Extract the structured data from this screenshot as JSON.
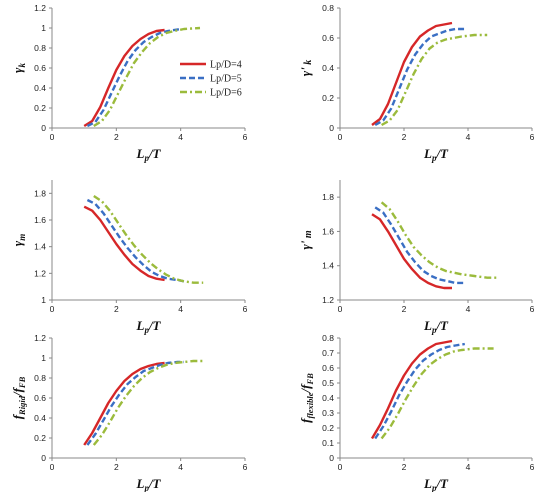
{
  "colors": {
    "red": "#d62728",
    "blue": "#3a6fc4",
    "green": "#9bbb3c",
    "axis": "#888888"
  },
  "legend": [
    "Lp/D=4",
    "Lp/D=5",
    "Lp/D=6"
  ],
  "chart_data": [
    {
      "type": "line",
      "xlabel": "Lp/T",
      "ylabel": "γk",
      "xlim": [
        0,
        6
      ],
      "ylim": [
        0,
        1.2
      ],
      "xticks": [
        0,
        2,
        4,
        6
      ],
      "yticks": [
        0,
        0.2,
        0.4,
        0.6,
        0.8,
        1,
        1.2
      ],
      "legend": "inside-right",
      "series": [
        {
          "name": "Lp/D=4",
          "x": [
            1.0,
            1.25,
            1.5,
            1.75,
            2.0,
            2.25,
            2.5,
            2.75,
            3.0,
            3.25,
            3.5
          ],
          "y": [
            0.02,
            0.07,
            0.21,
            0.4,
            0.58,
            0.72,
            0.82,
            0.89,
            0.94,
            0.97,
            0.98
          ]
        },
        {
          "name": "Lp/D=5",
          "x": [
            1.1,
            1.35,
            1.6,
            1.85,
            2.1,
            2.35,
            2.6,
            2.85,
            3.1,
            3.35,
            3.6,
            4.0
          ],
          "y": [
            0.02,
            0.06,
            0.18,
            0.35,
            0.52,
            0.67,
            0.78,
            0.86,
            0.91,
            0.95,
            0.97,
            0.99
          ]
        },
        {
          "name": "Lp/D=6",
          "x": [
            1.3,
            1.55,
            1.8,
            2.05,
            2.3,
            2.55,
            2.8,
            3.05,
            3.3,
            3.55,
            3.8,
            4.1,
            4.6
          ],
          "y": [
            0.02,
            0.07,
            0.18,
            0.34,
            0.5,
            0.65,
            0.76,
            0.85,
            0.91,
            0.95,
            0.97,
            0.99,
            1.0
          ]
        }
      ]
    },
    {
      "type": "line",
      "xlabel": "Lp/T",
      "ylabel": "γ'k",
      "xlim": [
        0,
        6
      ],
      "ylim": [
        0,
        0.8
      ],
      "xticks": [
        0,
        2,
        4,
        6
      ],
      "yticks": [
        0,
        0.2,
        0.4,
        0.6,
        0.8
      ],
      "series": [
        {
          "name": "Lp/D=4",
          "x": [
            1.0,
            1.25,
            1.5,
            1.75,
            2.0,
            2.25,
            2.5,
            2.75,
            3.0,
            3.25,
            3.5
          ],
          "y": [
            0.02,
            0.06,
            0.16,
            0.3,
            0.44,
            0.54,
            0.61,
            0.65,
            0.68,
            0.69,
            0.7
          ]
        },
        {
          "name": "Lp/D=5",
          "x": [
            1.1,
            1.35,
            1.6,
            1.85,
            2.1,
            2.35,
            2.6,
            2.85,
            3.1,
            3.35,
            3.6,
            3.9
          ],
          "y": [
            0.02,
            0.05,
            0.13,
            0.26,
            0.39,
            0.49,
            0.56,
            0.61,
            0.63,
            0.65,
            0.66,
            0.66
          ]
        },
        {
          "name": "Lp/D=6",
          "x": [
            1.3,
            1.55,
            1.8,
            2.05,
            2.3,
            2.55,
            2.8,
            3.05,
            3.3,
            3.55,
            3.8,
            4.2,
            4.6
          ],
          "y": [
            0.02,
            0.05,
            0.12,
            0.24,
            0.36,
            0.46,
            0.53,
            0.57,
            0.59,
            0.6,
            0.61,
            0.62,
            0.62
          ]
        }
      ]
    },
    {
      "type": "line",
      "xlabel": "Lp/T",
      "ylabel": "γm",
      "xlim": [
        0,
        6
      ],
      "ylim": [
        1,
        1.9
      ],
      "xticks": [
        0,
        2,
        4,
        6
      ],
      "yticks": [
        1,
        1.2,
        1.4,
        1.6,
        1.8
      ],
      "series": [
        {
          "name": "Lp/D=4",
          "x": [
            1.0,
            1.25,
            1.5,
            1.75,
            2.0,
            2.25,
            2.5,
            2.75,
            3.0,
            3.25,
            3.5
          ],
          "y": [
            1.7,
            1.67,
            1.6,
            1.51,
            1.42,
            1.34,
            1.27,
            1.22,
            1.18,
            1.16,
            1.15
          ]
        },
        {
          "name": "Lp/D=5",
          "x": [
            1.1,
            1.35,
            1.6,
            1.85,
            2.1,
            2.35,
            2.6,
            2.85,
            3.1,
            3.35,
            3.6,
            3.9,
            4.1
          ],
          "y": [
            1.75,
            1.72,
            1.65,
            1.56,
            1.47,
            1.39,
            1.32,
            1.26,
            1.21,
            1.18,
            1.16,
            1.15,
            1.14
          ]
        },
        {
          "name": "Lp/D=6",
          "x": [
            1.3,
            1.55,
            1.8,
            2.05,
            2.3,
            2.55,
            2.8,
            3.05,
            3.3,
            3.55,
            3.8,
            4.1,
            4.4,
            4.7
          ],
          "y": [
            1.78,
            1.74,
            1.67,
            1.58,
            1.49,
            1.41,
            1.34,
            1.28,
            1.23,
            1.19,
            1.16,
            1.14,
            1.13,
            1.13
          ]
        }
      ]
    },
    {
      "type": "line",
      "xlabel": "Lp/T",
      "ylabel": "γ'm",
      "xlim": [
        0,
        6
      ],
      "ylim": [
        1.2,
        1.9
      ],
      "xticks": [
        0,
        2,
        4,
        6
      ],
      "yticks": [
        1.2,
        1.4,
        1.6,
        1.8
      ],
      "series": [
        {
          "name": "Lp/D=4",
          "x": [
            1.0,
            1.25,
            1.5,
            1.75,
            2.0,
            2.25,
            2.5,
            2.75,
            3.0,
            3.25,
            3.5
          ],
          "y": [
            1.7,
            1.67,
            1.6,
            1.52,
            1.44,
            1.38,
            1.33,
            1.3,
            1.28,
            1.27,
            1.27
          ]
        },
        {
          "name": "Lp/D=5",
          "x": [
            1.1,
            1.35,
            1.6,
            1.85,
            2.1,
            2.35,
            2.6,
            2.85,
            3.1,
            3.35,
            3.6,
            3.9
          ],
          "y": [
            1.74,
            1.71,
            1.64,
            1.56,
            1.48,
            1.42,
            1.37,
            1.34,
            1.32,
            1.31,
            1.3,
            1.3
          ]
        },
        {
          "name": "Lp/D=6",
          "x": [
            1.3,
            1.55,
            1.8,
            2.05,
            2.3,
            2.55,
            2.8,
            3.05,
            3.3,
            3.55,
            3.8,
            4.2,
            4.6,
            4.9
          ],
          "y": [
            1.77,
            1.73,
            1.66,
            1.58,
            1.51,
            1.46,
            1.42,
            1.39,
            1.37,
            1.36,
            1.35,
            1.34,
            1.33,
            1.33
          ]
        }
      ]
    },
    {
      "type": "line",
      "xlabel": "Lp/T",
      "ylabel": "fRigid/fFB",
      "xlim": [
        0,
        6
      ],
      "ylim": [
        0,
        1.2
      ],
      "xticks": [
        0,
        2,
        4,
        6
      ],
      "yticks": [
        0,
        0.2,
        0.4,
        0.6,
        0.8,
        1,
        1.2
      ],
      "series": [
        {
          "name": "Lp/D=4",
          "x": [
            1.0,
            1.25,
            1.5,
            1.75,
            2.0,
            2.25,
            2.5,
            2.75,
            3.0,
            3.25,
            3.5
          ],
          "y": [
            0.13,
            0.25,
            0.4,
            0.55,
            0.67,
            0.77,
            0.84,
            0.89,
            0.92,
            0.94,
            0.95
          ]
        },
        {
          "name": "Lp/D=5",
          "x": [
            1.1,
            1.35,
            1.6,
            1.85,
            2.1,
            2.35,
            2.6,
            2.85,
            3.1,
            3.35,
            3.6,
            3.9,
            4.1
          ],
          "y": [
            0.13,
            0.24,
            0.38,
            0.52,
            0.64,
            0.74,
            0.81,
            0.87,
            0.9,
            0.93,
            0.95,
            0.96,
            0.96
          ]
        },
        {
          "name": "Lp/D=6",
          "x": [
            1.3,
            1.55,
            1.8,
            2.05,
            2.3,
            2.55,
            2.8,
            3.05,
            3.3,
            3.55,
            3.8,
            4.1,
            4.4,
            4.7
          ],
          "y": [
            0.13,
            0.23,
            0.36,
            0.5,
            0.62,
            0.72,
            0.8,
            0.86,
            0.9,
            0.93,
            0.95,
            0.96,
            0.97,
            0.97
          ]
        }
      ]
    },
    {
      "type": "line",
      "xlabel": "Lp/T",
      "ylabel": "fflexible/fFB",
      "xlim": [
        0,
        6
      ],
      "ylim": [
        0,
        0.8
      ],
      "xticks": [
        0,
        2,
        4,
        6
      ],
      "yticks": [
        0,
        0.1,
        0.2,
        0.3,
        0.4,
        0.5,
        0.6,
        0.7,
        0.8
      ],
      "series": [
        {
          "name": "Lp/D=4",
          "x": [
            1.0,
            1.25,
            1.5,
            1.75,
            2.0,
            2.25,
            2.5,
            2.75,
            3.0,
            3.25,
            3.5
          ],
          "y": [
            0.13,
            0.22,
            0.33,
            0.45,
            0.55,
            0.63,
            0.69,
            0.73,
            0.76,
            0.77,
            0.78
          ]
        },
        {
          "name": "Lp/D=5",
          "x": [
            1.1,
            1.35,
            1.6,
            1.85,
            2.1,
            2.35,
            2.6,
            2.85,
            3.1,
            3.35,
            3.6,
            3.9
          ],
          "y": [
            0.13,
            0.21,
            0.31,
            0.42,
            0.51,
            0.59,
            0.65,
            0.69,
            0.72,
            0.74,
            0.75,
            0.76
          ]
        },
        {
          "name": "Lp/D=6",
          "x": [
            1.3,
            1.55,
            1.8,
            2.05,
            2.3,
            2.55,
            2.8,
            3.05,
            3.3,
            3.55,
            3.8,
            4.2,
            4.6,
            4.8
          ],
          "y": [
            0.13,
            0.2,
            0.29,
            0.39,
            0.48,
            0.56,
            0.62,
            0.66,
            0.69,
            0.71,
            0.72,
            0.73,
            0.73,
            0.73
          ]
        }
      ]
    }
  ]
}
